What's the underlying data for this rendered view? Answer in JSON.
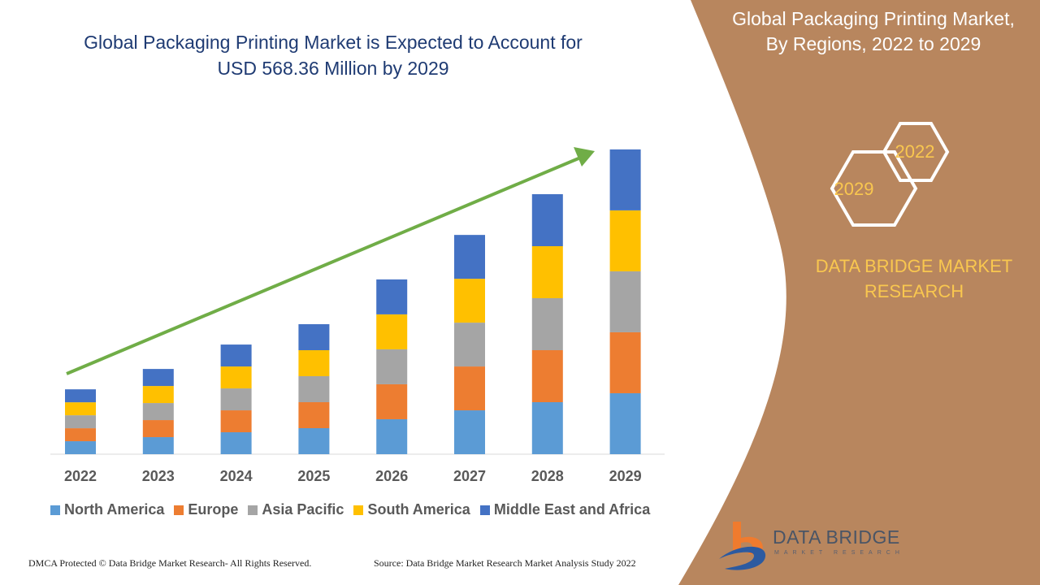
{
  "header": {
    "title_line1": "Global Packaging Printing Market is Expected to Account for",
    "title_line2": "USD 568.36 Million by 2029"
  },
  "side_panel": {
    "title_line1": "Global Packaging Printing Market,",
    "title_line2": "By Regions, 2022 to 2029",
    "hex_top": "2022",
    "hex_bottom": "2029",
    "brand_line1": "DATA BRIDGE MARKET",
    "brand_line2": "RESEARCH",
    "panel_color": "#b8865e",
    "accent_color": "#f9c74f"
  },
  "logo": {
    "name": "DATA BRIDGE",
    "tagline": "MARKET RESEARCH"
  },
  "footer": {
    "left": "DMCA Protected © Data Bridge Market Research- All Rights Reserved.",
    "right": "Source: Data Bridge Market Research Market Analysis Study 2022"
  },
  "chart_data": {
    "type": "bar",
    "stacked": true,
    "categories": [
      "2022",
      "2023",
      "2024",
      "2025",
      "2026",
      "2027",
      "2028",
      "2029"
    ],
    "series": [
      {
        "name": "North America",
        "color": "#5b9bd5",
        "values": [
          24.2,
          31.8,
          40.9,
          48.5,
          65.2,
          81.8,
          97.0,
          113.7
        ]
      },
      {
        "name": "Europe",
        "color": "#ed7d31",
        "values": [
          24.2,
          31.8,
          40.9,
          48.5,
          65.2,
          81.8,
          97.0,
          113.7
        ]
      },
      {
        "name": "Asia Pacific",
        "color": "#a5a5a5",
        "values": [
          24.2,
          31.8,
          40.9,
          48.5,
          65.2,
          81.8,
          97.0,
          113.7
        ]
      },
      {
        "name": "South America",
        "color": "#ffc000",
        "values": [
          24.2,
          31.8,
          40.9,
          48.5,
          65.2,
          81.8,
          97.0,
          113.7
        ]
      },
      {
        "name": "Middle East and Africa",
        "color": "#4472c4",
        "values": [
          24.2,
          31.8,
          40.9,
          48.5,
          65.2,
          81.8,
          97.0,
          113.7
        ]
      }
    ],
    "ylim": [
      0,
      568.36
    ],
    "y_axis_shown": false,
    "grid": false,
    "legend": "bottom",
    "trend_arrow_color": "#70ad47"
  }
}
